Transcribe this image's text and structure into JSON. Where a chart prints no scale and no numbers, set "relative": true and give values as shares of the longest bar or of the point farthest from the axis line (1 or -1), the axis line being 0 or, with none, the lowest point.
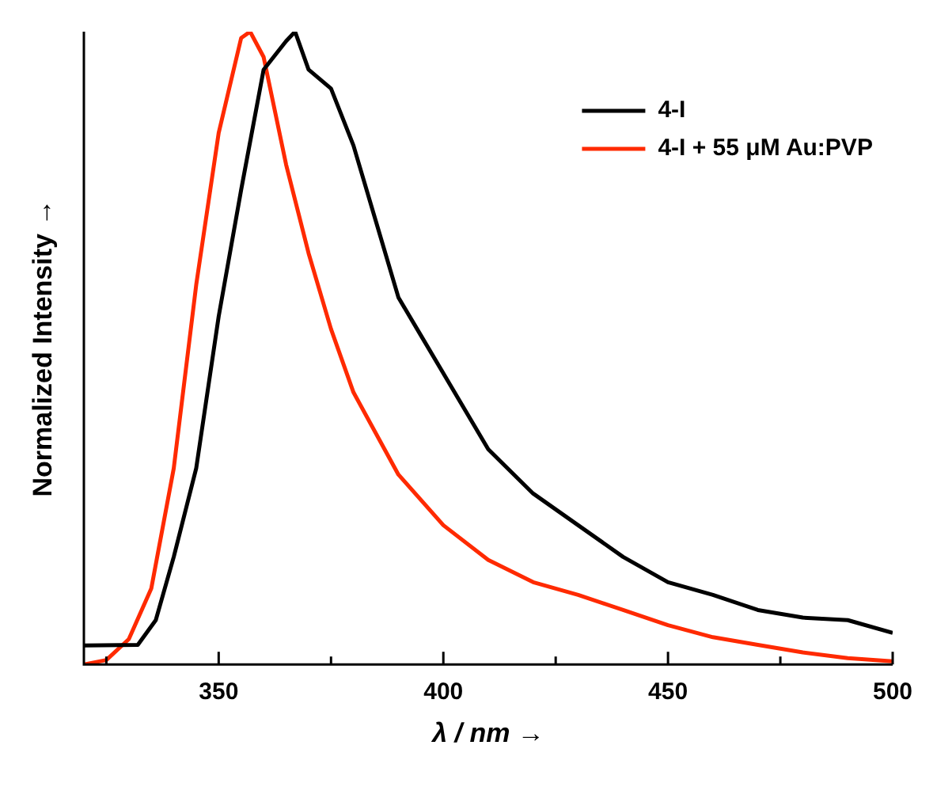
{
  "chart_data": {
    "type": "line",
    "xlabel": "λ / nm →",
    "ylabel": "Normalized Intensity →",
    "relative": true,
    "xlim": [
      320,
      500
    ],
    "xticks": [
      {
        "value": 325,
        "label": null
      },
      350,
      {
        "value": 375,
        "label": null
      },
      400,
      {
        "value": 425,
        "label": null
      },
      450,
      {
        "value": 475,
        "label": null
      },
      500
    ],
    "legend": "top right",
    "marker": "none",
    "line_style": "solid",
    "grid": false,
    "series": [
      {
        "name": "4-I",
        "color": "#000000",
        "x": [
          320,
          332,
          336,
          340,
          345,
          350,
          355,
          360,
          365,
          367,
          370,
          375,
          380,
          385,
          390,
          395,
          400,
          410,
          420,
          430,
          440,
          450,
          460,
          470,
          480,
          490,
          500
        ],
        "values": [
          0.03,
          0.031,
          0.07,
          0.17,
          0.31,
          0.55,
          0.75,
          0.94,
          0.985,
          1,
          0.94,
          0.91,
          0.82,
          0.7,
          0.58,
          0.52,
          0.46,
          0.34,
          0.27,
          0.22,
          0.17,
          0.13,
          0.11,
          0.086,
          0.074,
          0.07,
          0.05
        ]
      },
      {
        "name": "4-I + 55 μM Au:PVP",
        "color": "#ff2a00",
        "x": [
          320,
          325,
          330,
          335,
          340,
          345,
          350,
          355,
          357,
          360,
          365,
          370,
          375,
          380,
          390,
          400,
          410,
          420,
          430,
          440,
          450,
          460,
          470,
          480,
          490,
          500
        ],
        "values": [
          0,
          0.007,
          0.04,
          0.12,
          0.31,
          0.6,
          0.84,
          0.99,
          1,
          0.96,
          0.79,
          0.65,
          0.53,
          0.43,
          0.3,
          0.22,
          0.165,
          0.13,
          0.11,
          0.086,
          0.062,
          0.043,
          0.031,
          0.019,
          0.01,
          0.005
        ]
      }
    ]
  }
}
